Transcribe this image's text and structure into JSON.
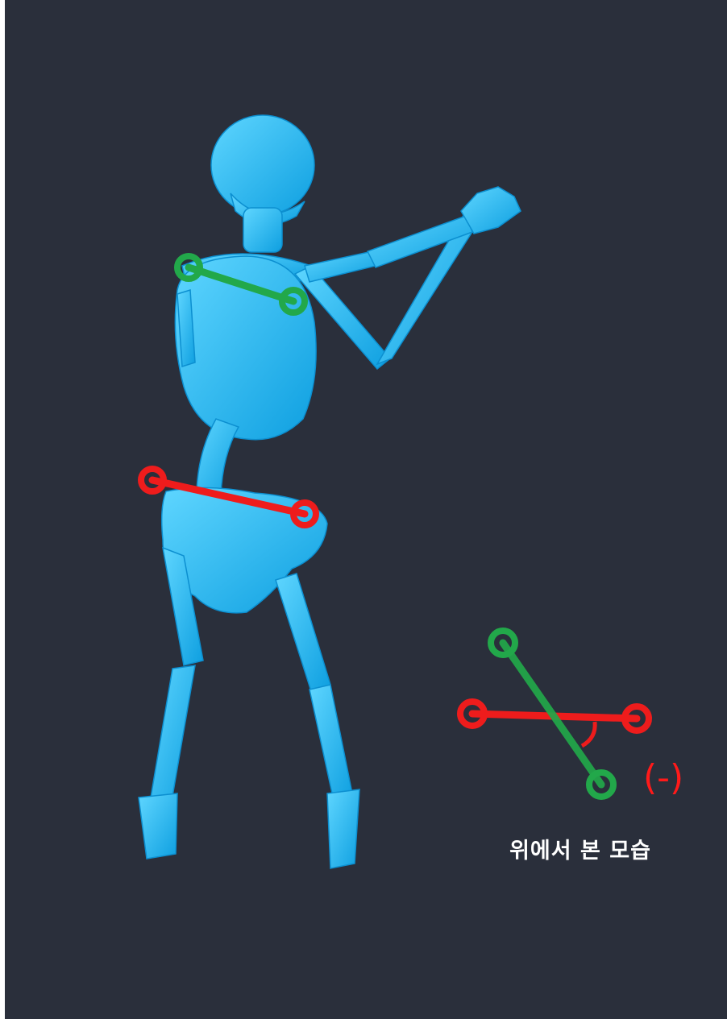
{
  "caption": "위에서 본 모습",
  "rotation_sign": "(-)",
  "colors": {
    "background": "#2a2f3b",
    "skeleton": "#19b7f0",
    "shoulder_line": "#22a84a",
    "pelvis_line": "#ee1c1c",
    "caption_text": "#ffffff"
  },
  "icons": [
    "skeleton-figure",
    "shoulder-marker",
    "pelvis-marker",
    "top-view-diagram",
    "angle-arc"
  ]
}
